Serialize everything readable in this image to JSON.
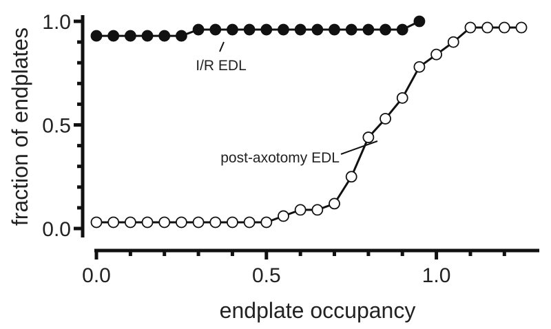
{
  "chart_data": {
    "type": "scatter",
    "title": "",
    "xlabel": "endplate occupancy",
    "ylabel": "fraction of endplates",
    "xlim": [
      0.0,
      1.25
    ],
    "ylim": [
      0.0,
      1.0
    ],
    "x_tick_labels": [
      "0.0",
      "0.5",
      "1.0"
    ],
    "y_tick_labels": [
      "0.0",
      "0.5",
      "1.0"
    ],
    "grid": false,
    "series": [
      {
        "name": "I/R EDL",
        "marker": "filled-circle",
        "color": "#111111",
        "x": [
          0.0,
          0.05,
          0.1,
          0.15,
          0.2,
          0.25,
          0.3,
          0.35,
          0.4,
          0.45,
          0.5,
          0.55,
          0.6,
          0.65,
          0.7,
          0.75,
          0.8,
          0.85,
          0.9,
          0.95
        ],
        "y": [
          0.93,
          0.93,
          0.93,
          0.93,
          0.93,
          0.93,
          0.96,
          0.96,
          0.96,
          0.96,
          0.96,
          0.96,
          0.96,
          0.96,
          0.96,
          0.96,
          0.96,
          0.96,
          0.96,
          1.0
        ]
      },
      {
        "name": "post-axotomy EDL",
        "marker": "open-circle",
        "color": "#111111",
        "x": [
          0.0,
          0.05,
          0.1,
          0.15,
          0.2,
          0.25,
          0.3,
          0.35,
          0.4,
          0.45,
          0.5,
          0.55,
          0.6,
          0.65,
          0.7,
          0.75,
          0.8,
          0.85,
          0.9,
          0.95,
          1.0,
          1.05,
          1.1,
          1.15,
          1.2,
          1.25
        ],
        "y": [
          0.03,
          0.03,
          0.03,
          0.03,
          0.03,
          0.03,
          0.03,
          0.03,
          0.03,
          0.03,
          0.03,
          0.06,
          0.09,
          0.09,
          0.12,
          0.25,
          0.44,
          0.53,
          0.63,
          0.78,
          0.84,
          0.9,
          0.97,
          0.97,
          0.97,
          0.97
        ]
      }
    ],
    "annotations": [
      {
        "text": "I/R EDL",
        "series": "I/R EDL"
      },
      {
        "text": "post-axotomy EDL",
        "series": "post-axotomy EDL"
      }
    ]
  }
}
